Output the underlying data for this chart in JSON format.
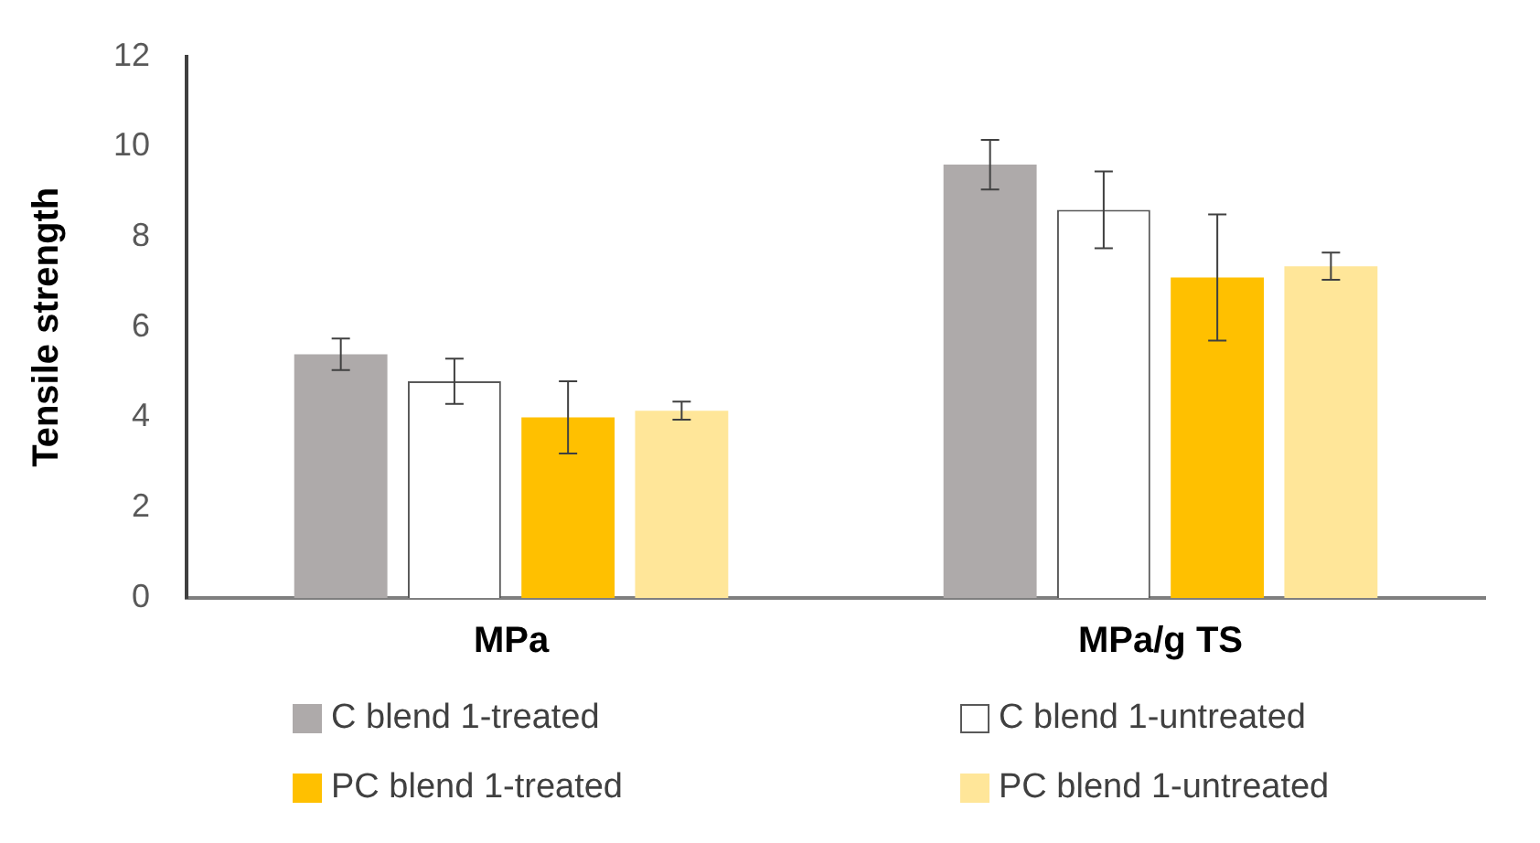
{
  "chart_data": {
    "type": "bar",
    "ylabel": "Tensile strength",
    "categories": [
      "MPa",
      "MPa/g TS"
    ],
    "series": [
      {
        "name": "C blend 1-treated",
        "color": "#aeaaaa",
        "values": [
          5.4,
          9.6
        ],
        "errors": [
          0.35,
          0.55
        ]
      },
      {
        "name": "C blend 1-untreated",
        "color": "#ffffff",
        "values": [
          4.8,
          8.6
        ],
        "errors": [
          0.5,
          0.85
        ]
      },
      {
        "name": "PC blend 1-treated",
        "color": "#ffc000",
        "values": [
          4.0,
          7.1
        ],
        "errors": [
          0.8,
          1.4
        ]
      },
      {
        "name": "PC blend 1-untreated",
        "color": "#ffe699",
        "values": [
          4.15,
          7.35
        ],
        "errors": [
          0.2,
          0.3
        ]
      }
    ],
    "ylim": [
      0,
      12
    ],
    "yticks": [
      0,
      2,
      4,
      6,
      8,
      10,
      12
    ],
    "grid": false,
    "legend": "bottom"
  }
}
